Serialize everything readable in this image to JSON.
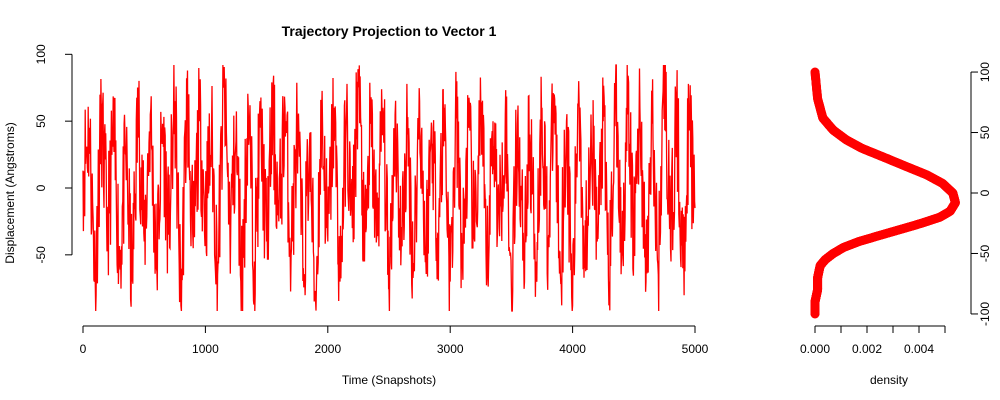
{
  "chart_data": [
    {
      "type": "line",
      "title": "Trajectory Projection to Vector 1",
      "xlabel": "Time (Snapshots)",
      "ylabel": "Displacement (Angstroms)",
      "xlim": [
        0,
        5000
      ],
      "ylim": [
        -95,
        95
      ],
      "x_ticks": [
        0,
        1000,
        2000,
        3000,
        4000,
        5000
      ],
      "y_ticks": [
        -50,
        0,
        50,
        100
      ],
      "color": "#ff0000",
      "grid": false,
      "series": [
        {
          "x": [
            0,
            50,
            100,
            150,
            200,
            250,
            300,
            350,
            400,
            450,
            500,
            550,
            600,
            650,
            700,
            750,
            800,
            850,
            900,
            950,
            1000,
            1050,
            1100,
            1150,
            1200,
            1250,
            1300,
            1350,
            1400,
            1450,
            1500,
            1550,
            1600,
            1650,
            1700,
            1750,
            1800,
            1850,
            1900,
            1950,
            2000,
            2050,
            2100,
            2150,
            2200,
            2250,
            2300,
            2350,
            2400,
            2450,
            2500,
            2550,
            2600,
            2650,
            2700,
            2750,
            2800,
            2850,
            2900,
            2950,
            3000,
            3050,
            3100,
            3150,
            3200,
            3250,
            3300,
            3350,
            3400,
            3450,
            3500,
            3550,
            3600,
            3650,
            3700,
            3750,
            3800,
            3850,
            3900,
            3950,
            4000,
            4050,
            4100,
            4150,
            4200,
            4250,
            4300,
            4350,
            4400,
            4450,
            4500,
            4550,
            4600,
            4650,
            4700,
            4750,
            4800,
            4850,
            4900,
            4950,
            5000
          ],
          "y": [
            13,
            45,
            -68,
            52,
            -30,
            40,
            -55,
            25,
            -70,
            60,
            -40,
            55,
            -60,
            48,
            -35,
            65,
            -88,
            70,
            -45,
            50,
            -20,
            40,
            -65,
            75,
            -30,
            35,
            -70,
            62,
            -55,
            45,
            -40,
            55,
            -25,
            60,
            -50,
            45,
            -60,
            30,
            -85,
            55,
            -40,
            60,
            -70,
            50,
            -30,
            88,
            -55,
            48,
            -35,
            60,
            -75,
            55,
            -45,
            40,
            -60,
            65,
            -50,
            45,
            -35,
            60,
            -70,
            52,
            -55,
            45,
            -40,
            62,
            -65,
            50,
            -30,
            55,
            -75,
            48,
            -45,
            40,
            -55,
            60,
            -40,
            70,
            -65,
            50,
            -88,
            80,
            -60,
            55,
            -40,
            50,
            -70,
            72,
            -45,
            55,
            -35,
            60,
            -70,
            48,
            -65,
            92,
            -45,
            55,
            -60,
            48,
            -15
          ]
        }
      ]
    },
    {
      "type": "line",
      "title": "",
      "xlabel": "density",
      "ylabel": "",
      "xlim": [
        0,
        0.006
      ],
      "ylim": [
        -105,
        105
      ],
      "x_ticks": [
        0.0,
        0.001,
        0.002,
        0.003,
        0.004,
        0.005
      ],
      "x_tick_labels": [
        "0.000",
        "",
        "0.002",
        "",
        "0.004",
        ""
      ],
      "y_ticks": [
        -100,
        -50,
        0,
        50,
        100
      ],
      "y_axis_side": "right",
      "color": "#ff0000",
      "grid": false,
      "series": [
        {
          "x": [
            0.0,
            0.0,
            0.0001,
            0.0001,
            0.0002,
            0.0004,
            0.0007,
            0.0011,
            0.0017,
            0.0025,
            0.0033,
            0.0041,
            0.0048,
            0.0052,
            0.0054,
            0.0053,
            0.0049,
            0.0043,
            0.0035,
            0.0026,
            0.0018,
            0.0012,
            0.0007,
            0.0003,
            0.0001,
            0.0
          ],
          "y": [
            -100,
            -90,
            -80,
            -70,
            -60,
            -55,
            -50,
            -45,
            -40,
            -35,
            -30,
            -25,
            -20,
            -15,
            -8,
            0,
            8,
            15,
            22,
            30,
            37,
            44,
            52,
            62,
            78,
            100
          ]
        }
      ]
    }
  ]
}
